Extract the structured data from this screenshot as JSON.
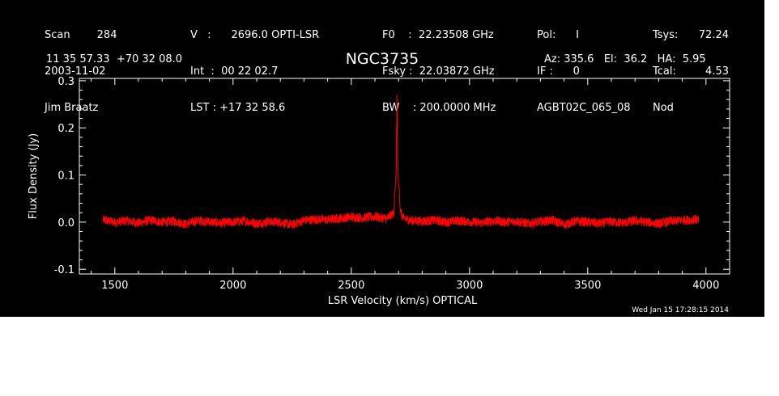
{
  "header": {
    "col1": [
      "Scan        284",
      "2003-11-02",
      "Jim Braatz"
    ],
    "col2": [
      "V   :      2696.0 OPTI-LSR",
      "Int  :  00 22 02.7",
      "LST : +17 32 58.6"
    ],
    "col3": [
      "F0    :  22.23508 GHz",
      "Fsky :  22.03872 GHz",
      "BW    : 200.0000 MHz"
    ],
    "col4": [
      "Pol:      I",
      "IF :      0",
      "AGBT02C_065_08"
    ],
    "col5": [
      "Tsys:",
      "Tcal:",
      "Nod"
    ],
    "col6": [
      "72.24",
      "4.53",
      ""
    ],
    "coords": "11 35 57.33  +70 32 08.0",
    "source": "NGC3735",
    "azelha": "Az: 335.6   El:  36.2   HA:  5.95"
  },
  "timestamp": "Wed Jan 15 17:28:15 2014",
  "colors": {
    "background": "#000000",
    "axes": "#ffffff",
    "series": "#ff0000"
  },
  "chart_data": {
    "type": "line",
    "title": "NGC3735",
    "xlabel": "LSR Velocity (km/s) OPTICAL",
    "ylabel": "Flux Density (Jy)",
    "xlim": [
      1350,
      4100
    ],
    "ylim": [
      -0.11,
      0.305
    ],
    "xticks": [
      1500,
      2000,
      2500,
      3000,
      3500,
      4000
    ],
    "xtick_labels": [
      "1500",
      "2000",
      "2500",
      "3000",
      "3500",
      "4000"
    ],
    "yticks": [
      -0.1,
      0.0,
      0.1,
      0.2,
      0.3
    ],
    "ytick_labels": [
      "-0.1",
      "0.0",
      "0.1",
      "0.2",
      "0.3"
    ],
    "series": [
      {
        "color": "#ff0000",
        "x": [
          1450,
          1500,
          1550,
          1600,
          1650,
          1700,
          1750,
          1800,
          1850,
          1900,
          1950,
          2000,
          2050,
          2100,
          2150,
          2200,
          2250,
          2300,
          2350,
          2400,
          2450,
          2500,
          2550,
          2600,
          2650,
          2680,
          2690,
          2693,
          2695,
          2697,
          2700,
          2703,
          2706,
          2710,
          2720,
          2750,
          2800,
          2850,
          2900,
          2950,
          3000,
          3050,
          3100,
          3150,
          3200,
          3250,
          3300,
          3350,
          3400,
          3450,
          3500,
          3550,
          3600,
          3650,
          3700,
          3750,
          3800,
          3850,
          3900,
          3950,
          3970
        ],
        "y": [
          0.005,
          0.0,
          0.003,
          -0.002,
          0.004,
          0.0,
          0.002,
          -0.004,
          0.003,
          0.001,
          -0.002,
          0.0,
          0.003,
          -0.003,
          0.001,
          0.0,
          -0.006,
          0.004,
          0.006,
          0.005,
          0.008,
          0.011,
          0.009,
          0.012,
          0.007,
          0.02,
          0.11,
          0.27,
          0.19,
          0.12,
          0.08,
          0.07,
          0.03,
          0.02,
          0.008,
          0.004,
          0.002,
          0.004,
          0.0,
          0.003,
          0.001,
          -0.002,
          0.003,
          0.0,
          0.002,
          -0.003,
          0.001,
          0.004,
          -0.005,
          0.002,
          0.0,
          -0.003,
          0.001,
          -0.002,
          0.003,
          0.0,
          -0.003,
          0.002,
          0.004,
          0.006,
          0.004
        ]
      }
    ]
  }
}
